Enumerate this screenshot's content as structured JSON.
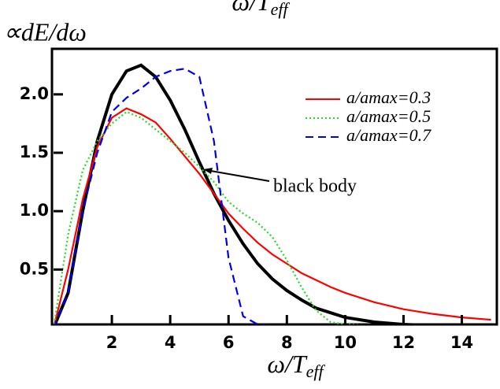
{
  "chart_data": {
    "type": "line",
    "top_label": {
      "main": "ω/T",
      "sub": "eff"
    },
    "y_label": "∝dE/dω",
    "x_label": {
      "main": "ω/T",
      "sub": "eff"
    },
    "annotation": "black body",
    "x": [
      0,
      0.5,
      1,
      1.5,
      2,
      2.5,
      3,
      3.5,
      4,
      4.5,
      5,
      5.5,
      6,
      6.5,
      7,
      7.5,
      8,
      8.5,
      9,
      9.5,
      10,
      11,
      12,
      13,
      14,
      15
    ],
    "series": [
      {
        "color": "#000000",
        "values": [
          0,
          0.3,
          1.0,
          1.6,
          2.0,
          2.2,
          2.25,
          2.15,
          1.95,
          1.7,
          1.42,
          1.15,
          0.92,
          0.72,
          0.55,
          0.42,
          0.32,
          0.24,
          0.17,
          0.13,
          0.09,
          0.05,
          0.03,
          0.02,
          0.01,
          0
        ]
      },
      {
        "name": "a/amax=0.3",
        "color": "#ff0000",
        "dash": "solid",
        "values": [
          0,
          0.5,
          1.1,
          1.55,
          1.8,
          1.88,
          1.83,
          1.76,
          1.62,
          1.47,
          1.32,
          1.15,
          0.98,
          0.85,
          0.73,
          0.63,
          0.55,
          0.47,
          0.41,
          0.35,
          0.3,
          0.22,
          0.16,
          0.12,
          0.09,
          0.07
        ]
      },
      {
        "name": "a/amax=0.5",
        "color": "#22dd22",
        "dash": "dotted",
        "values": [
          0,
          0.8,
          1.35,
          1.6,
          1.75,
          1.85,
          1.8,
          1.7,
          1.6,
          1.5,
          1.38,
          1.25,
          1.08,
          0.98,
          0.9,
          0.78,
          0.58,
          0.35,
          0.15,
          0.05,
          0.03,
          0.02,
          0.02,
          0.02,
          0.02,
          0.02
        ]
      },
      {
        "name": "a/amax=0.7",
        "color": "#0000ee",
        "dash": "dashed",
        "values": [
          0,
          0.3,
          1.0,
          1.5,
          1.85,
          1.97,
          2.05,
          2.15,
          2.2,
          2.22,
          2.15,
          1.6,
          0.6,
          0.1,
          0.03,
          0.02,
          0.02,
          0.02,
          0.02,
          0.02,
          0.02,
          0.02,
          0.02,
          0.02,
          0.02,
          0.02
        ]
      }
    ],
    "xlim": [
      0,
      15.2
    ],
    "ylim": [
      0.03,
      2.39
    ],
    "xticks": [
      2,
      4,
      6,
      8,
      10,
      12,
      14
    ],
    "yticks": [
      0.5,
      {
        "value": 1,
        "label": "1.0"
      },
      1.5,
      {
        "value": 2,
        "label": "2.0"
      }
    ]
  }
}
